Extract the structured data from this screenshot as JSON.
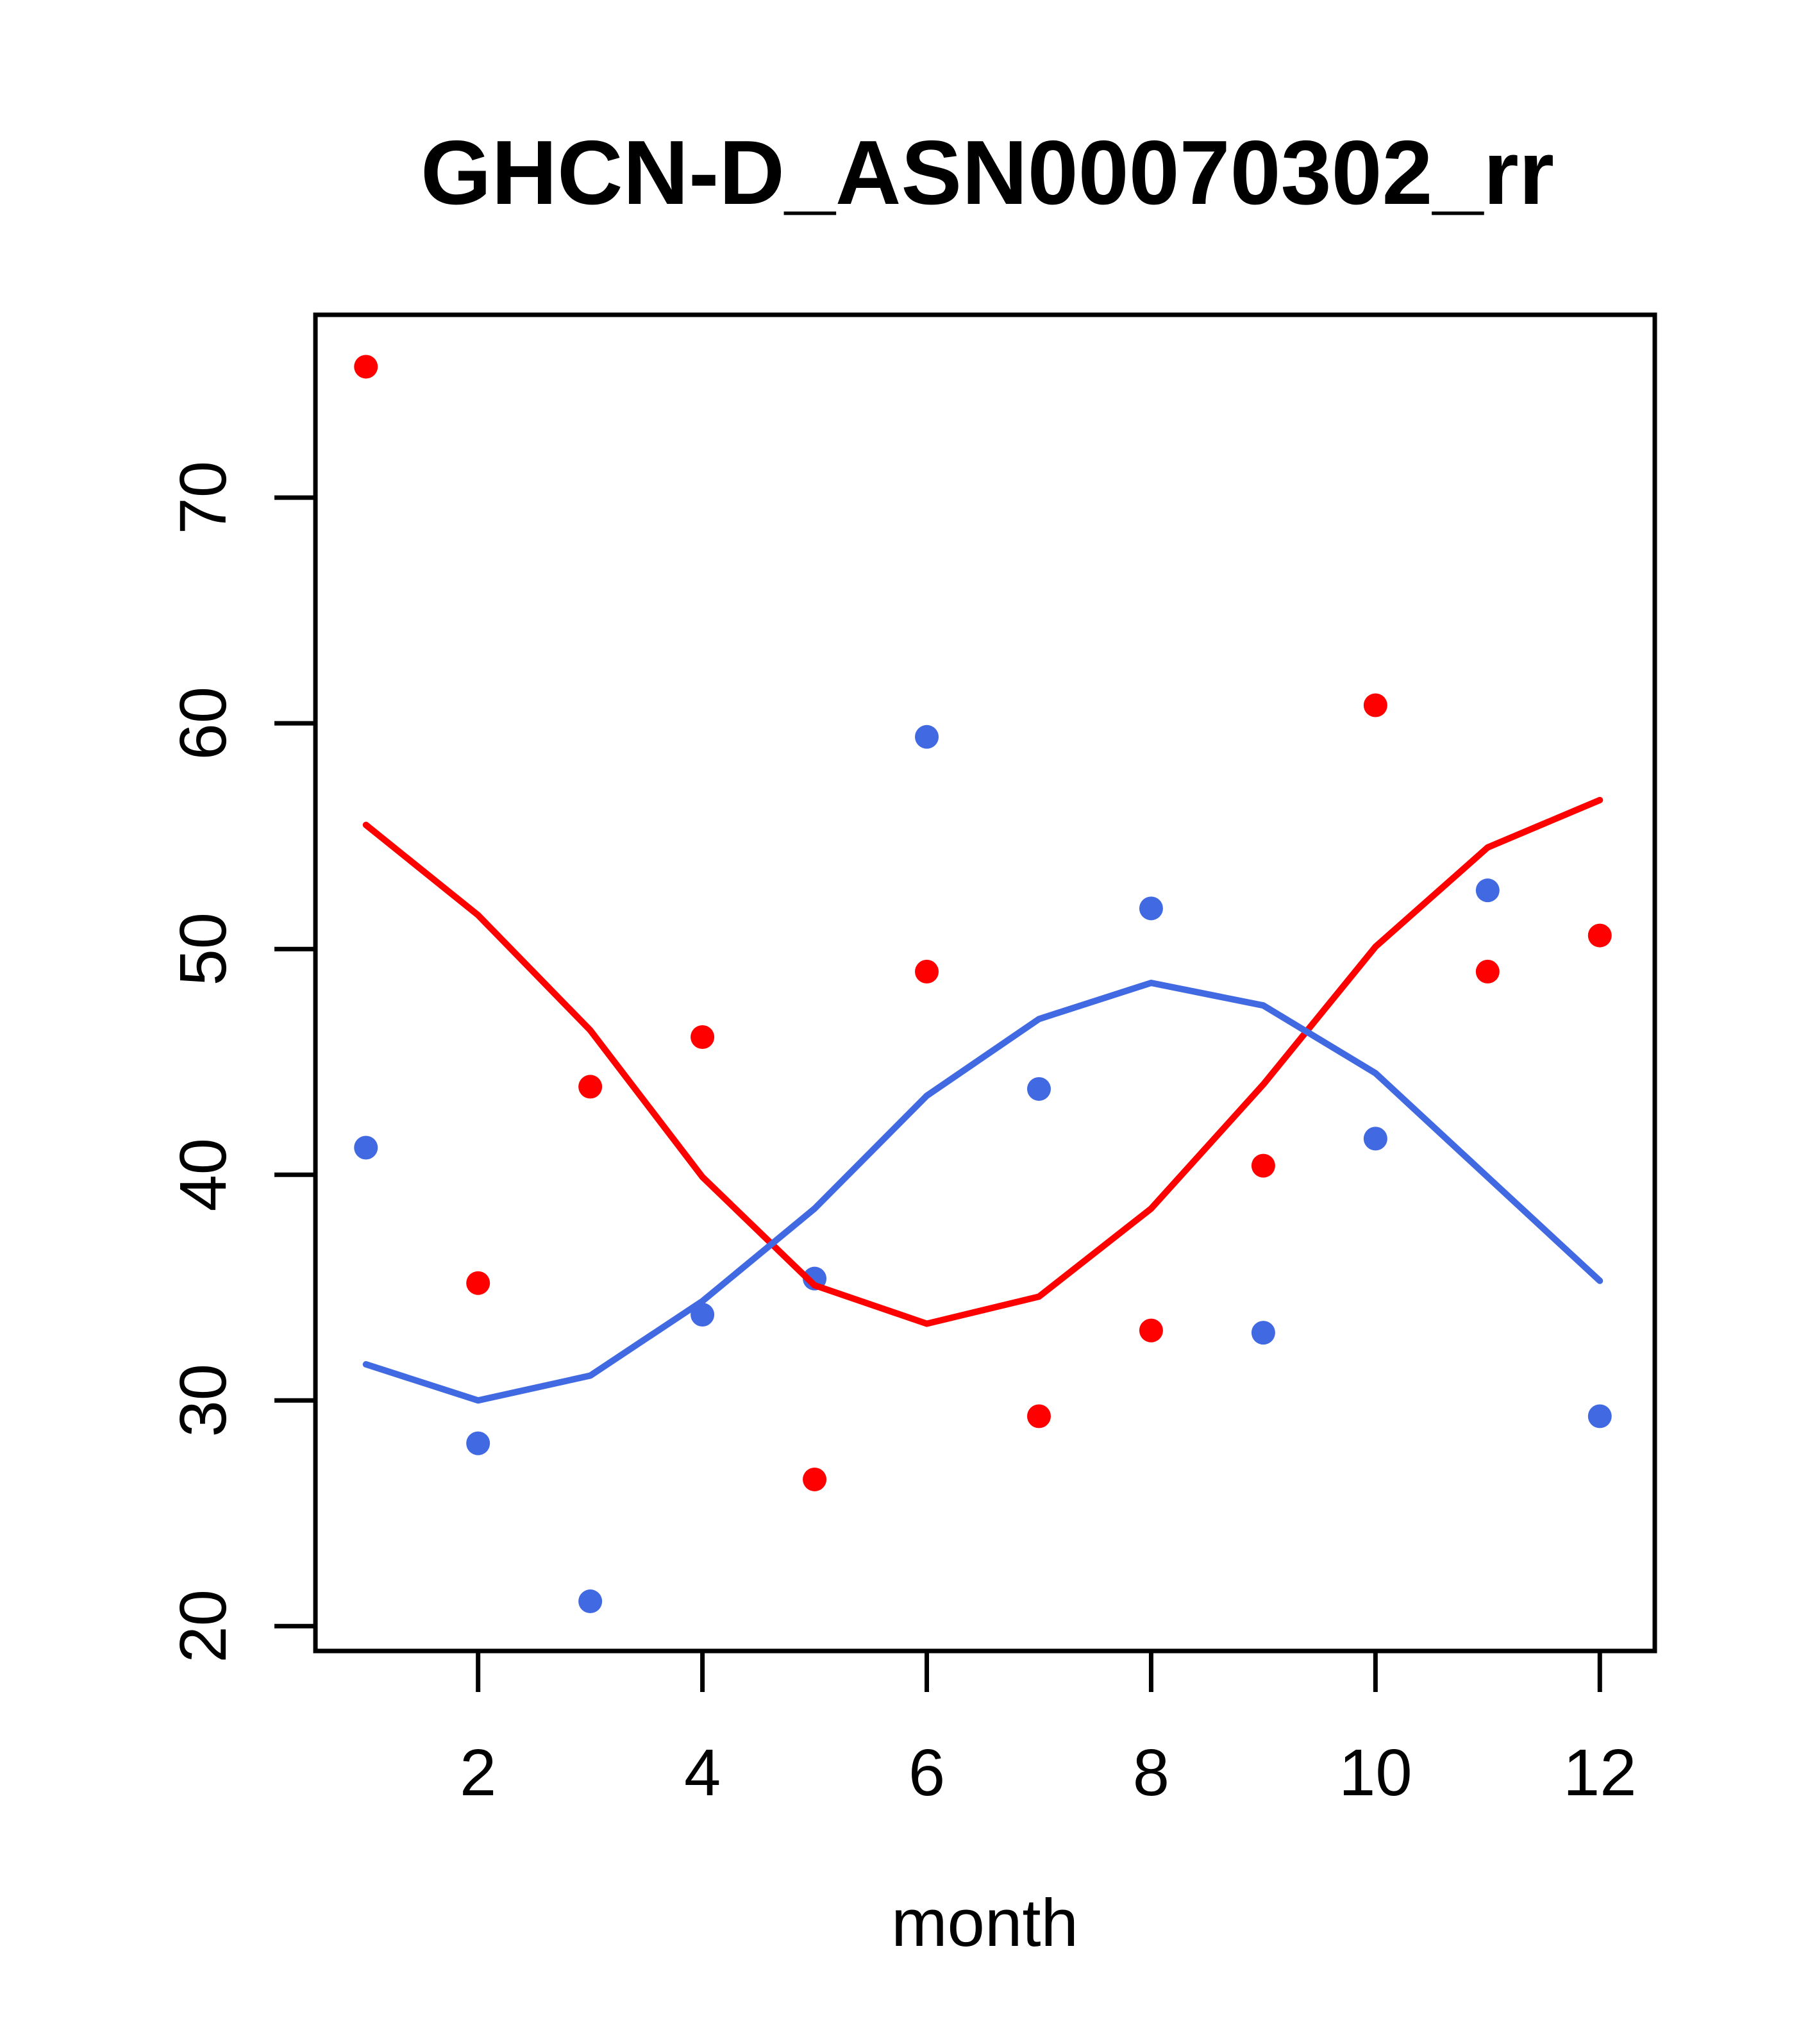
{
  "title": "GHCN-D_ASN00070302_rr",
  "chart_data": {
    "type": "scatter",
    "title": "GHCN-D_ASN00070302_rr",
    "xlabel": "month",
    "ylabel": "",
    "x": [
      1,
      2,
      3,
      4,
      5,
      6,
      7,
      8,
      9,
      10,
      11,
      12
    ],
    "x_ticks": [
      2,
      4,
      6,
      8,
      10,
      12
    ],
    "y_ticks": [
      20,
      30,
      40,
      50,
      60,
      70
    ],
    "xlim": [
      0.55,
      12.49
    ],
    "ylim": [
      18.9,
      78.1
    ],
    "grid": false,
    "legend": "none",
    "box": true,
    "colors": {
      "red": "#FF0000",
      "blue": "#4169E1",
      "axis": "#000000",
      "background": "#FFFFFF"
    },
    "series": [
      {
        "name": "red-points",
        "type": "scatter",
        "color": "#FF0000",
        "values": [
          75.8,
          35.2,
          43.9,
          46.1,
          26.5,
          49.0,
          29.3,
          33.1,
          40.4,
          60.8,
          49.0,
          50.6
        ]
      },
      {
        "name": "blue-points",
        "type": "scatter",
        "color": "#4169E1",
        "values": [
          41.2,
          28.1,
          21.1,
          33.8,
          35.4,
          59.4,
          43.8,
          51.8,
          33.0,
          41.6,
          52.6,
          29.3
        ]
      },
      {
        "name": "red-smooth-line",
        "type": "line",
        "color": "#FF0000",
        "values": [
          55.5,
          51.5,
          46.4,
          39.9,
          35.1,
          33.4,
          34.6,
          38.5,
          44.0,
          50.1,
          54.5,
          56.6
        ]
      },
      {
        "name": "blue-smooth-line",
        "type": "line",
        "color": "#4169E1",
        "values": [
          31.6,
          30.0,
          31.1,
          34.4,
          38.5,
          43.5,
          46.9,
          48.5,
          47.5,
          44.5,
          39.9,
          35.3
        ]
      }
    ]
  }
}
